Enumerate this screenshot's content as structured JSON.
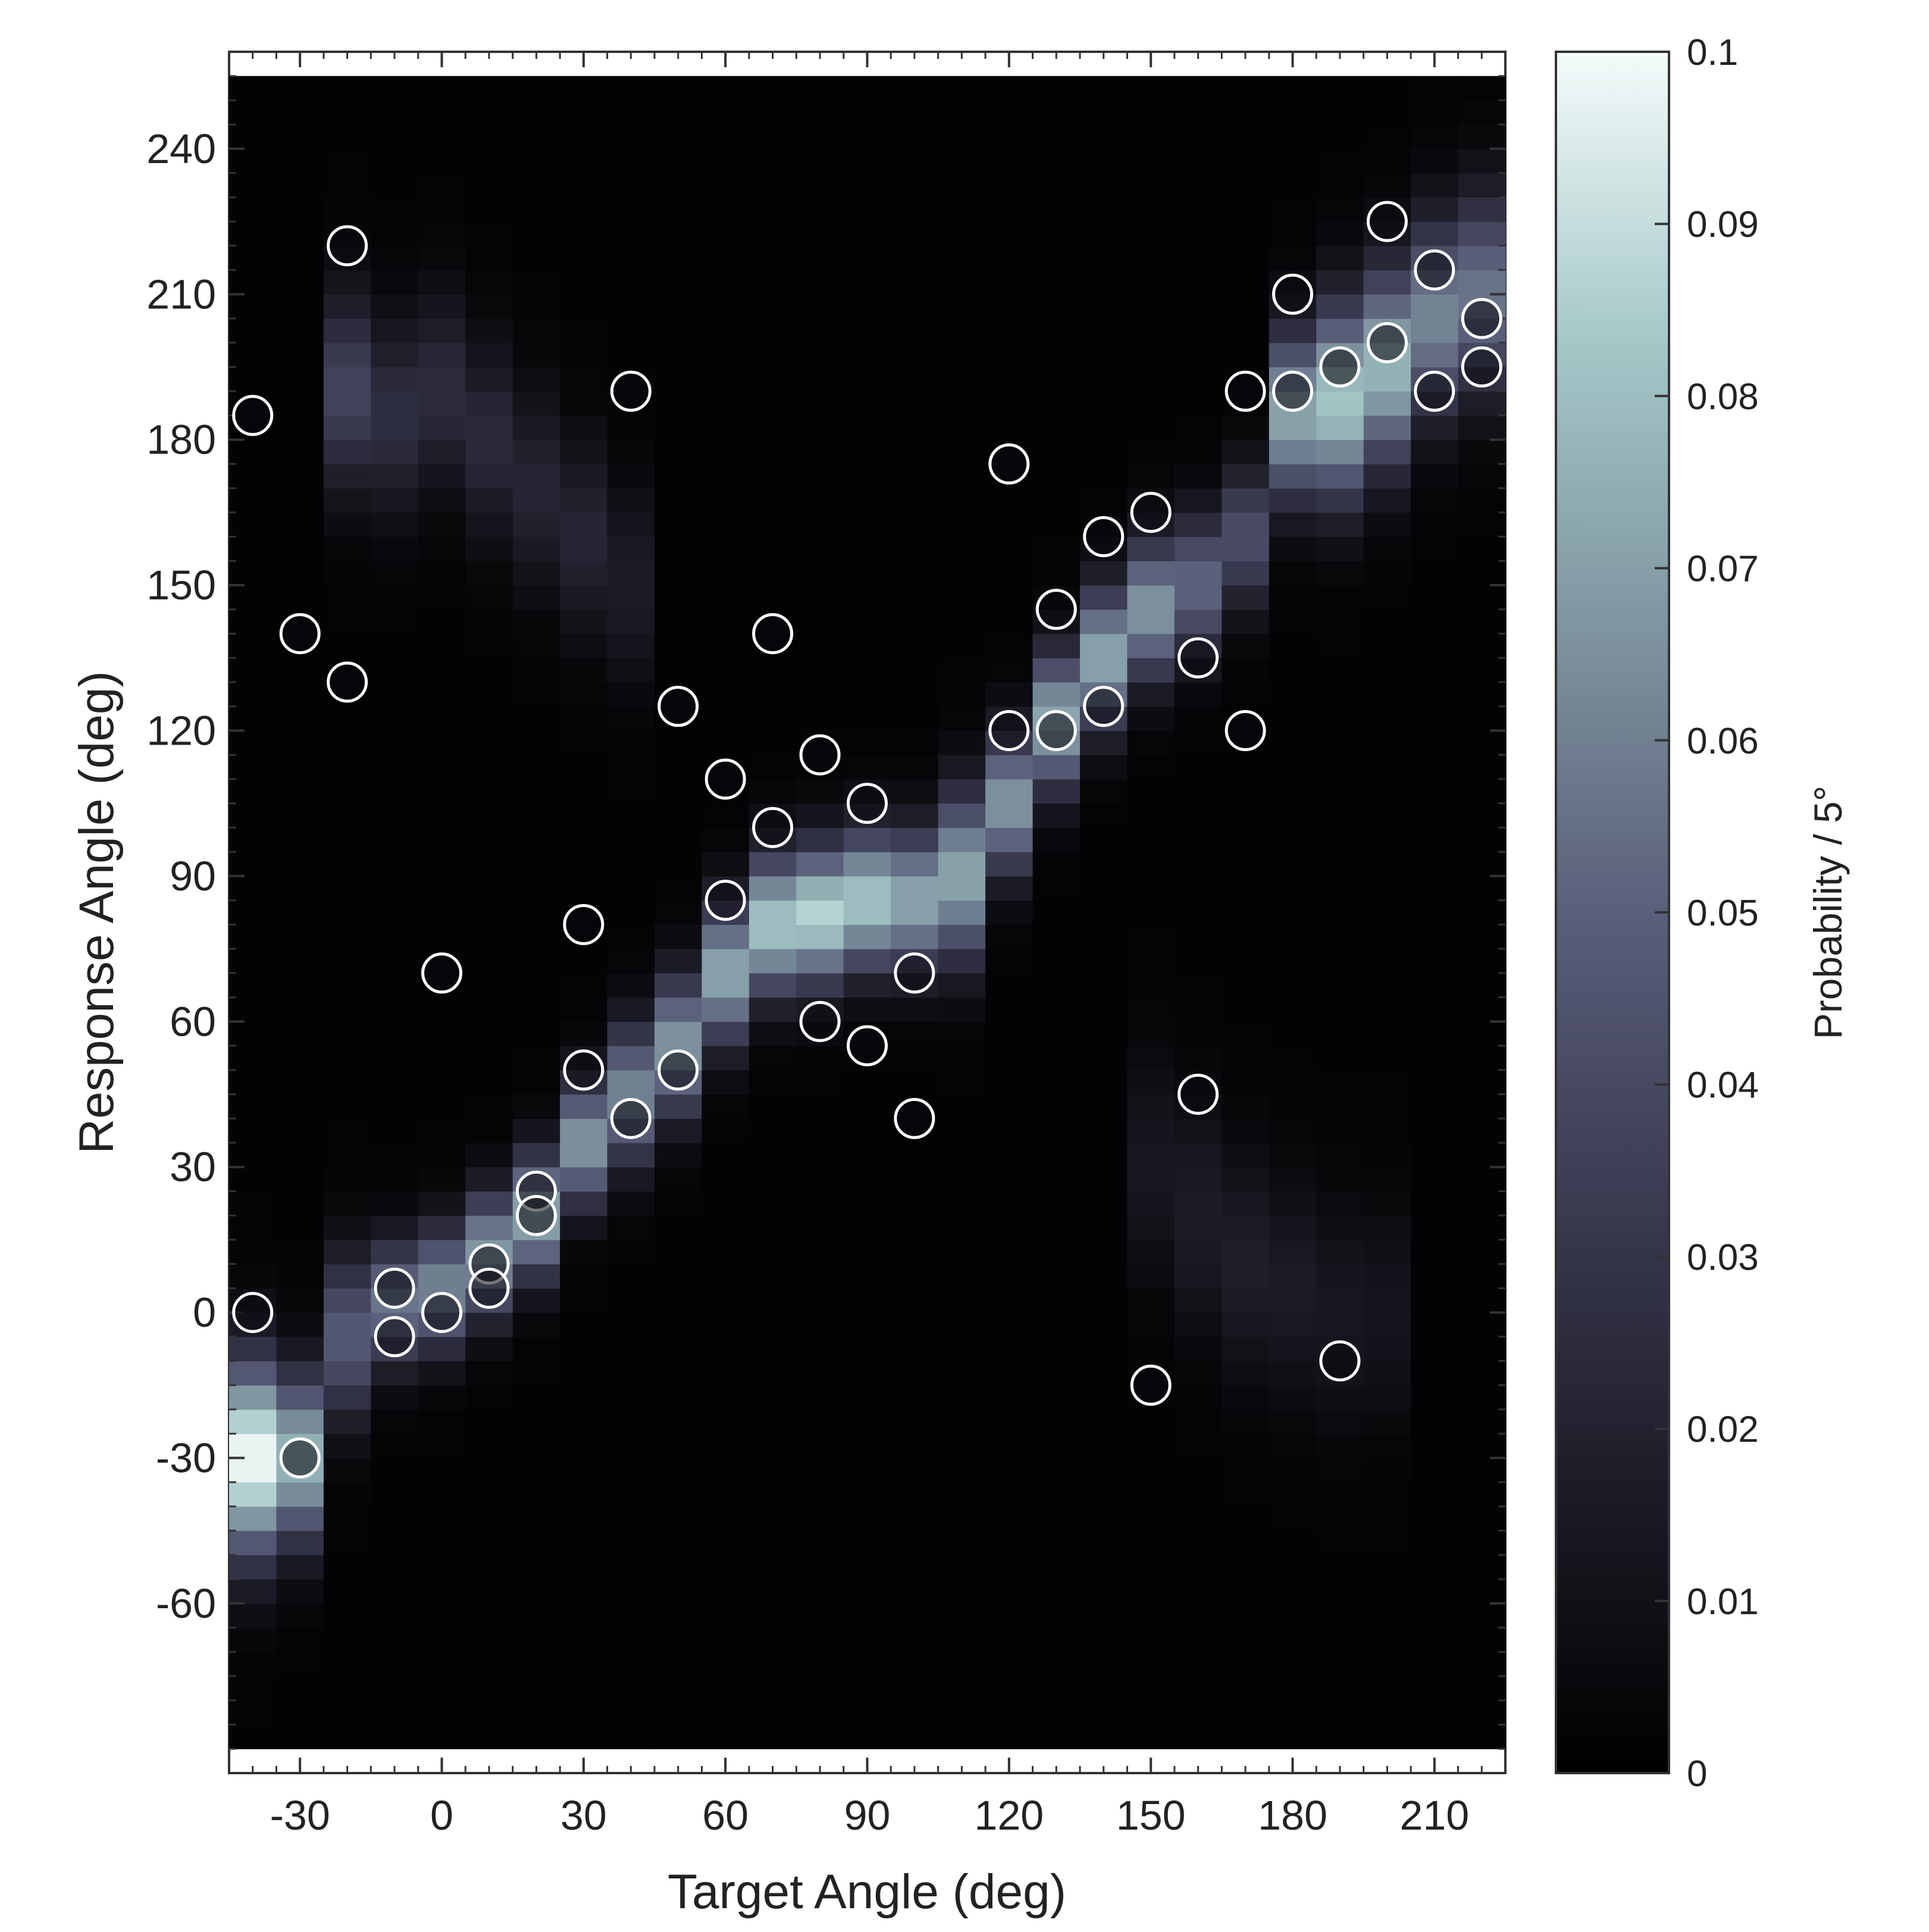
{
  "chart_data": {
    "type": "heatmap",
    "xlabel": "Target Angle (deg)",
    "ylabel": "Response Angle (deg)",
    "xlim": [
      -45,
      225
    ],
    "ylim": [
      -95,
      260
    ],
    "x_ticks": [
      -30,
      0,
      30,
      60,
      90,
      120,
      150,
      180,
      210
    ],
    "y_ticks": [
      -60,
      -30,
      0,
      30,
      60,
      90,
      120,
      150,
      180,
      210,
      240
    ],
    "x_tick_labels": [
      "-30",
      "0",
      "30",
      "60",
      "90",
      "120",
      "150",
      "180",
      "210"
    ],
    "y_tick_labels": [
      "-60",
      "-30",
      "0",
      "30",
      "60",
      "90",
      "120",
      "150",
      "180",
      "210",
      "240"
    ],
    "bin_width_deg": 10,
    "bin_height_deg": 5,
    "colorbar": {
      "label": "Probability / 5°",
      "min": 0,
      "max": 0.1,
      "ticks": [
        0,
        0.01,
        0.02,
        0.03,
        0.04,
        0.05,
        0.06,
        0.07,
        0.08,
        0.09,
        0.1
      ],
      "tick_labels": [
        "0",
        "0.01",
        "0.02",
        "0.03",
        "0.04",
        "0.05",
        "0.06",
        "0.07",
        "0.08",
        "0.09",
        "0.1"
      ],
      "colormap": [
        "#000000",
        "#1c1c27",
        "#3b3b52",
        "#5a5f7a",
        "#7f95a0",
        "#a5c8c8",
        "#f4fbfa"
      ]
    },
    "heatmap_model": {
      "background": 0.002,
      "ridges": [
        {
          "points": [
            [
              -40,
              -30
            ],
            [
              -30,
              -30
            ],
            [
              -20,
              -5
            ],
            [
              -10,
              2
            ],
            [
              0,
              5
            ],
            [
              10,
              12
            ],
            [
              20,
              20
            ],
            [
              30,
              35
            ],
            [
              40,
              45
            ],
            [
              50,
              55
            ],
            [
              60,
              70
            ],
            [
              70,
              80
            ],
            [
              80,
              82
            ],
            [
              90,
              85
            ],
            [
              100,
              85
            ],
            [
              110,
              90
            ],
            [
              120,
              105
            ],
            [
              130,
              122
            ],
            [
              140,
              135
            ],
            [
              150,
              145
            ],
            [
              160,
              150
            ],
            [
              170,
              160
            ],
            [
              180,
              185
            ],
            [
              190,
              188
            ],
            [
              200,
              195
            ],
            [
              210,
              205
            ],
            [
              220,
              210
            ]
          ],
          "peaks": [
            0.097,
            0.075,
            0.045,
            0.055,
            0.06,
            0.065,
            0.07,
            0.065,
            0.06,
            0.065,
            0.07,
            0.08,
            0.085,
            0.08,
            0.07,
            0.07,
            0.065,
            0.07,
            0.07,
            0.065,
            0.05,
            0.04,
            0.07,
            0.08,
            0.075,
            0.06,
            0.055
          ],
          "widths": [
            14,
            12,
            12,
            9,
            9,
            9,
            9,
            9,
            10,
            10,
            10,
            10,
            10,
            10,
            10,
            12,
            10,
            10,
            10,
            10,
            10,
            10,
            12,
            14,
            14,
            14,
            14
          ]
        },
        {
          "points": [
            [
              -20,
              190
            ],
            [
              -10,
              185
            ],
            [
              0,
              190
            ],
            [
              10,
              180
            ],
            [
              20,
              170
            ],
            [
              30,
              160
            ],
            [
              40,
              150
            ]
          ],
          "peaks": [
            0.035,
            0.025,
            0.023,
            0.022,
            0.02,
            0.02,
            0.015
          ],
          "widths": [
            14,
            14,
            14,
            14,
            14,
            14,
            14
          ]
        },
        {
          "points": [
            [
              150,
              30
            ],
            [
              160,
              20
            ],
            [
              170,
              10
            ],
            [
              180,
              5
            ],
            [
              190,
              0
            ],
            [
              200,
              0
            ]
          ],
          "peaks": [
            0.012,
            0.015,
            0.016,
            0.014,
            0.012,
            0.01
          ],
          "widths": [
            16,
            16,
            16,
            16,
            16,
            16
          ]
        }
      ]
    },
    "scatter_points": [
      {
        "x": -40,
        "y": 185
      },
      {
        "x": -40,
        "y": 0
      },
      {
        "x": -30,
        "y": 140
      },
      {
        "x": -30,
        "y": -30
      },
      {
        "x": -20,
        "y": 220
      },
      {
        "x": -20,
        "y": 130
      },
      {
        "x": -10,
        "y": 5
      },
      {
        "x": -10,
        "y": -5
      },
      {
        "x": 0,
        "y": 70
      },
      {
        "x": 0,
        "y": 0
      },
      {
        "x": 10,
        "y": 10
      },
      {
        "x": 10,
        "y": 5
      },
      {
        "x": 20,
        "y": 25
      },
      {
        "x": 20,
        "y": 20
      },
      {
        "x": 30,
        "y": 80
      },
      {
        "x": 30,
        "y": 50
      },
      {
        "x": 40,
        "y": 190
      },
      {
        "x": 40,
        "y": 40
      },
      {
        "x": 50,
        "y": 125
      },
      {
        "x": 50,
        "y": 50
      },
      {
        "x": 60,
        "y": 110
      },
      {
        "x": 60,
        "y": 85
      },
      {
        "x": 70,
        "y": 140
      },
      {
        "x": 70,
        "y": 100
      },
      {
        "x": 80,
        "y": 115
      },
      {
        "x": 80,
        "y": 60
      },
      {
        "x": 90,
        "y": 105
      },
      {
        "x": 90,
        "y": 55
      },
      {
        "x": 100,
        "y": 70
      },
      {
        "x": 100,
        "y": 40
      },
      {
        "x": 120,
        "y": 175
      },
      {
        "x": 120,
        "y": 120
      },
      {
        "x": 130,
        "y": 145
      },
      {
        "x": 130,
        "y": 120
      },
      {
        "x": 140,
        "y": 160
      },
      {
        "x": 140,
        "y": 125
      },
      {
        "x": 150,
        "y": 165
      },
      {
        "x": 150,
        "y": -15
      },
      {
        "x": 160,
        "y": 135
      },
      {
        "x": 160,
        "y": 45
      },
      {
        "x": 170,
        "y": 190
      },
      {
        "x": 170,
        "y": 120
      },
      {
        "x": 180,
        "y": 210
      },
      {
        "x": 180,
        "y": 190
      },
      {
        "x": 190,
        "y": 195
      },
      {
        "x": 190,
        "y": -10
      },
      {
        "x": 200,
        "y": 225
      },
      {
        "x": 200,
        "y": 200
      },
      {
        "x": 210,
        "y": 215
      },
      {
        "x": 210,
        "y": 190
      },
      {
        "x": 220,
        "y": 205
      },
      {
        "x": 220,
        "y": 195
      }
    ]
  }
}
